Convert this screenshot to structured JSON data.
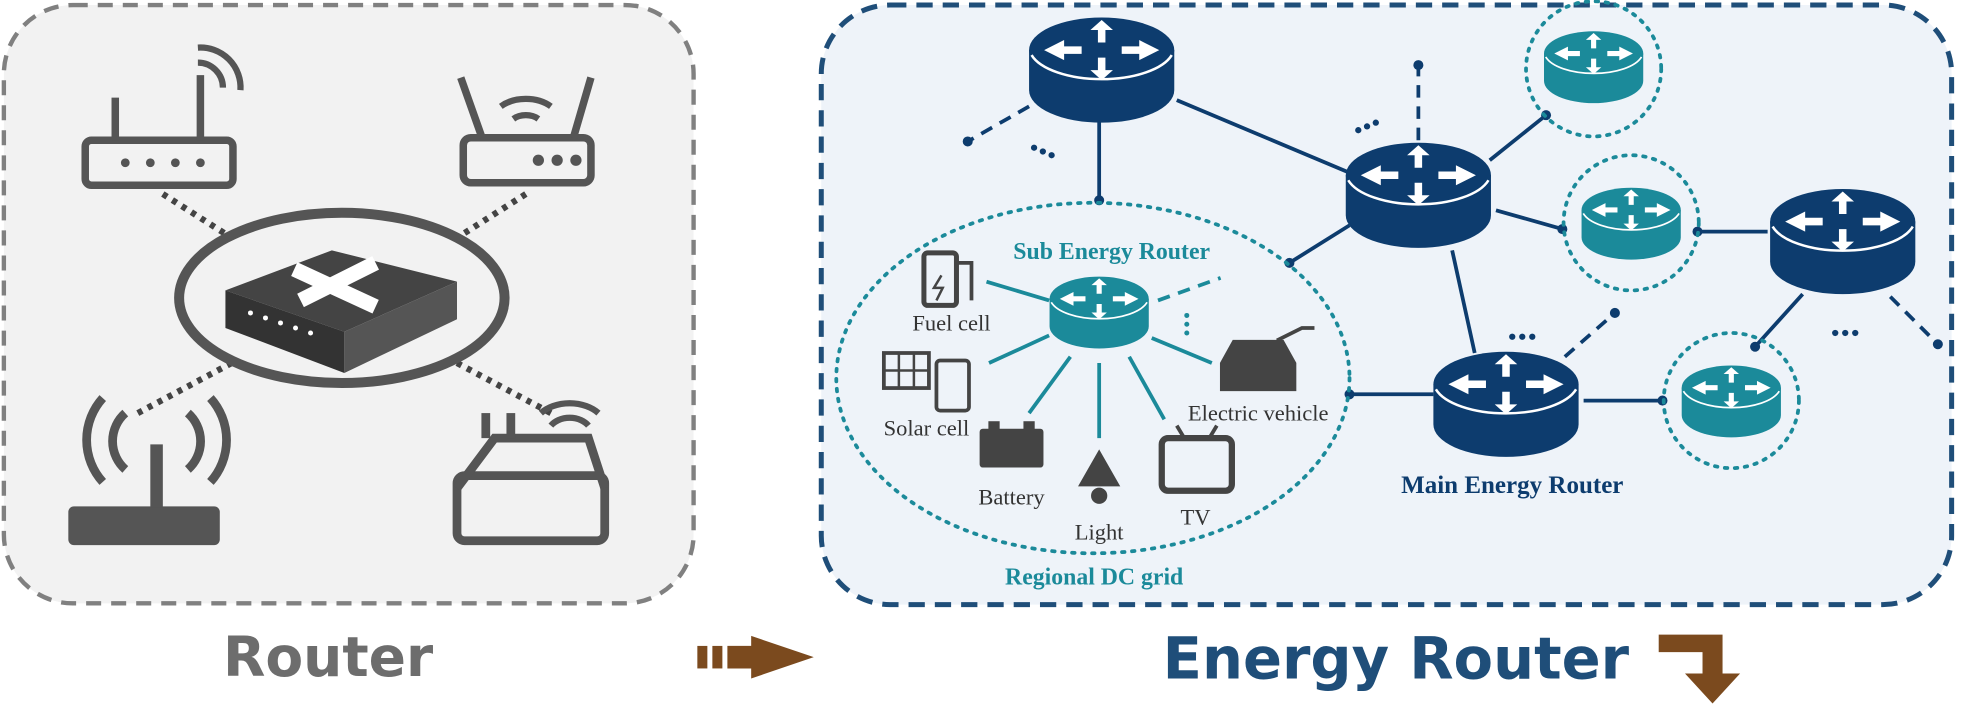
{
  "left_panel": {
    "label": "Router"
  },
  "right_panel": {
    "label": "Energy Router",
    "main_router_label": "Main Energy Router",
    "regional_grid": {
      "label": "Regional DC grid",
      "sub_router_label": "Sub Energy Router",
      "devices": [
        "Fuel cell",
        "Solar cell",
        "Battery",
        "Light",
        "TV",
        "Electric vehicle"
      ]
    }
  }
}
